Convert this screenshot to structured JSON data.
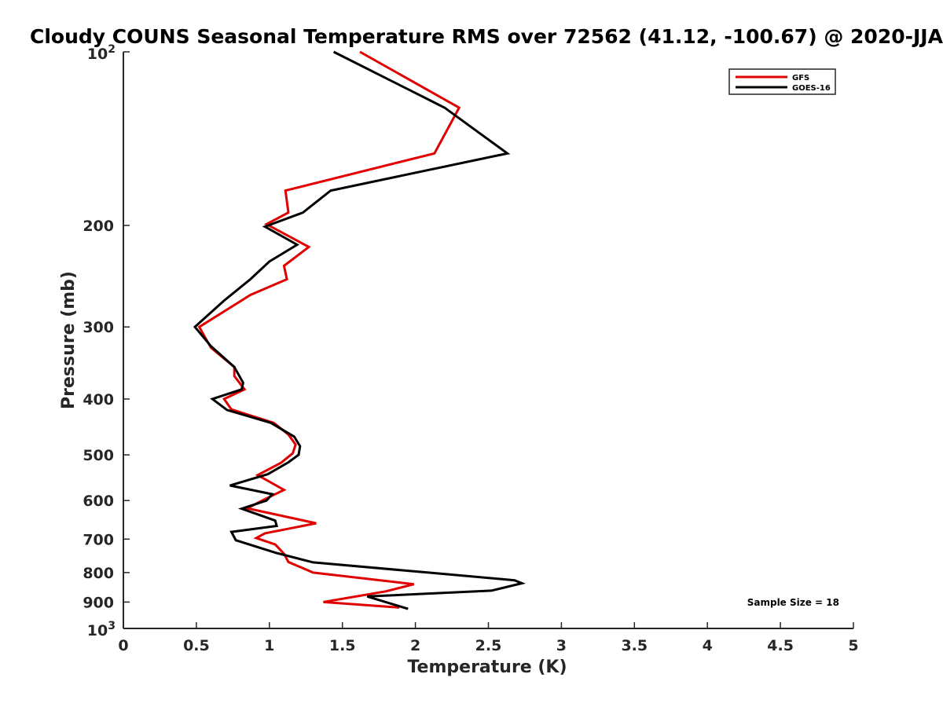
{
  "chart_data": {
    "type": "line",
    "title": "Cloudy COUNS Seasonal Temperature RMS over 72562 (41.12, -100.67) @ 2020-JJA",
    "xlabel": "Temperature (K)",
    "ylabel": "Pressure (mb)",
    "xlim": [
      0,
      5
    ],
    "ylim": [
      100,
      1000
    ],
    "y_scale": "log",
    "y_reversed": true,
    "grid": false,
    "legend_position": "top-right",
    "x_ticks": [
      "0",
      "0.5",
      "1",
      "1.5",
      "2",
      "2.5",
      "3",
      "3.5",
      "4",
      "4.5",
      "5"
    ],
    "y_ticks": [
      {
        "value": 200,
        "label": "200"
      },
      {
        "value": 300,
        "label": "300"
      },
      {
        "value": 400,
        "label": "400"
      },
      {
        "value": 500,
        "label": "500"
      },
      {
        "value": 600,
        "label": "600"
      },
      {
        "value": 700,
        "label": "700"
      },
      {
        "value": 800,
        "label": "800"
      },
      {
        "value": 900,
        "label": "900"
      }
    ],
    "y_tick_end_labels": [
      {
        "value": 100,
        "base": "10",
        "exp": "2"
      },
      {
        "value": 1000,
        "base": "10",
        "exp": "3"
      }
    ],
    "annotation": "Sample Size = 18",
    "series": [
      {
        "name": "GFS",
        "color": "#e00000",
        "points": [
          [
            1.62,
            100
          ],
          [
            2.3,
            125
          ],
          [
            2.13,
            150
          ],
          [
            1.11,
            174
          ],
          [
            1.13,
            190
          ],
          [
            0.98,
            199
          ],
          [
            1.27,
            218
          ],
          [
            1.1,
            235
          ],
          [
            1.12,
            248
          ],
          [
            0.87,
            264
          ],
          [
            0.52,
            300
          ],
          [
            0.6,
            326
          ],
          [
            0.76,
            352
          ],
          [
            0.76,
            365
          ],
          [
            0.83,
            385
          ],
          [
            0.69,
            400
          ],
          [
            0.74,
            417
          ],
          [
            1.03,
            440
          ],
          [
            1.13,
            461
          ],
          [
            1.18,
            480
          ],
          [
            1.16,
            497
          ],
          [
            1.08,
            516
          ],
          [
            0.92,
            542
          ],
          [
            1.1,
            575
          ],
          [
            0.95,
            600
          ],
          [
            0.85,
            619
          ],
          [
            1.32,
            657
          ],
          [
            0.97,
            684
          ],
          [
            0.91,
            697
          ],
          [
            1.04,
            715
          ],
          [
            1.1,
            742
          ],
          [
            1.13,
            767
          ],
          [
            1.3,
            800
          ],
          [
            1.99,
            838
          ],
          [
            1.8,
            862
          ],
          [
            1.37,
            900
          ],
          [
            1.89,
            920
          ]
        ]
      },
      {
        "name": "GOES-16",
        "color": "#000000",
        "points": [
          [
            1.44,
            100
          ],
          [
            2.2,
            125
          ],
          [
            2.63,
            150
          ],
          [
            1.42,
            174
          ],
          [
            1.23,
            190
          ],
          [
            0.97,
            201
          ],
          [
            1.19,
            216
          ],
          [
            1.0,
            231
          ],
          [
            0.87,
            248
          ],
          [
            0.69,
            270
          ],
          [
            0.49,
            300
          ],
          [
            0.6,
            324
          ],
          [
            0.76,
            352
          ],
          [
            0.82,
            375
          ],
          [
            0.81,
            385
          ],
          [
            0.61,
            400
          ],
          [
            0.71,
            418
          ],
          [
            1.01,
            440
          ],
          [
            1.17,
            465
          ],
          [
            1.21,
            483
          ],
          [
            1.2,
            500
          ],
          [
            1.13,
            515
          ],
          [
            0.99,
            540
          ],
          [
            0.73,
            565
          ],
          [
            1.02,
            585
          ],
          [
            0.98,
            600
          ],
          [
            0.81,
            620
          ],
          [
            1.04,
            650
          ],
          [
            1.05,
            664
          ],
          [
            0.74,
            680
          ],
          [
            0.77,
            703
          ],
          [
            1.05,
            740
          ],
          [
            1.3,
            768
          ],
          [
            2.09,
            800
          ],
          [
            2.68,
            825
          ],
          [
            2.73,
            835
          ],
          [
            2.52,
            860
          ],
          [
            1.67,
            880
          ],
          [
            1.95,
            925
          ]
        ]
      }
    ]
  }
}
